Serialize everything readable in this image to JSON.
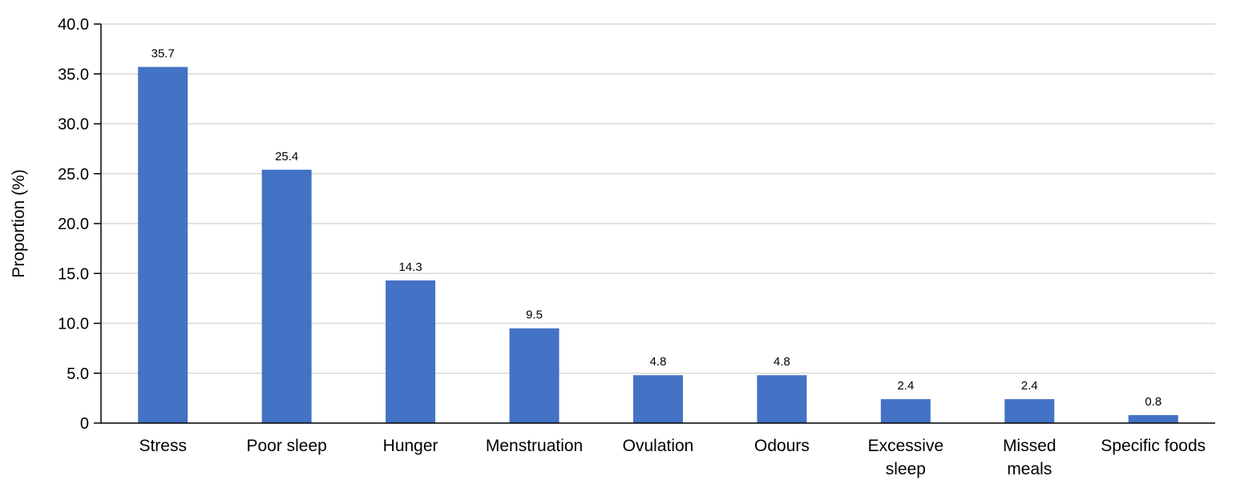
{
  "chart_data": {
    "type": "bar",
    "categories": [
      "Stress",
      "Poor sleep",
      "Hunger",
      "Menstruation",
      "Ovulation",
      "Odours",
      "Excessive sleep",
      "Missed meals",
      "Specific foods"
    ],
    "category_lines": [
      [
        "Stress"
      ],
      [
        "Poor sleep"
      ],
      [
        "Hunger"
      ],
      [
        "Menstruation"
      ],
      [
        "Ovulation"
      ],
      [
        "Odours"
      ],
      [
        "Excessive",
        "sleep"
      ],
      [
        "Missed",
        "meals"
      ],
      [
        "Specific foods"
      ]
    ],
    "values": [
      35.7,
      25.4,
      14.3,
      9.5,
      4.8,
      4.8,
      2.4,
      2.4,
      0.8
    ],
    "value_labels": [
      "35.7",
      "25.4",
      "14.3",
      "9.5",
      "4.8",
      "4.8",
      "2.4",
      "2.4",
      "0.8"
    ],
    "title": "",
    "xlabel": "",
    "ylabel": "Proportion (%)",
    "ylim": [
      0,
      40
    ],
    "yticks": [
      0,
      5,
      10,
      15,
      20,
      25,
      30,
      35,
      40
    ],
    "ytick_labels": [
      "0",
      "5.0",
      "10.0",
      "15.0",
      "20.0",
      "25.0",
      "30.0",
      "35.0",
      "40.0"
    ],
    "bar_color": "#4472c4",
    "grid": true,
    "legend": "none"
  }
}
